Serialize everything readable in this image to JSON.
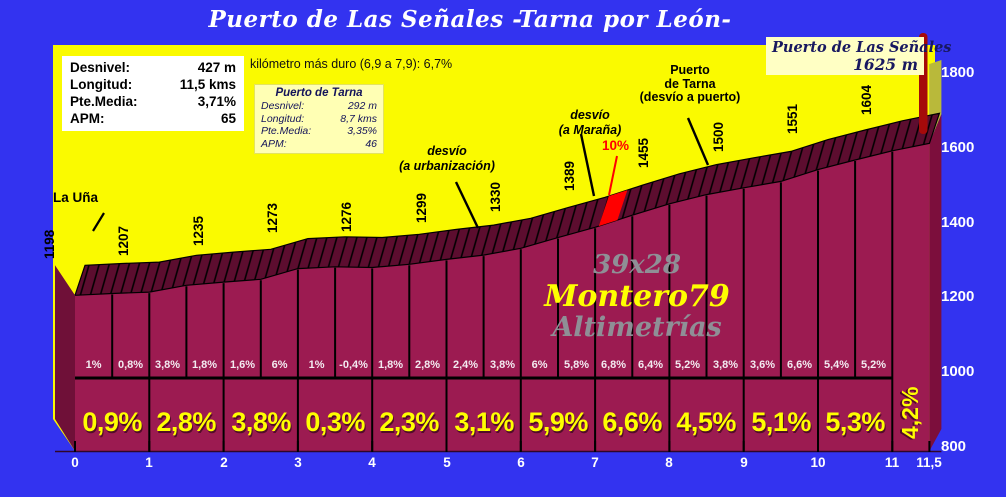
{
  "title": "Puerto de Las Señales -Tarna por León-",
  "stats_box": {
    "rows": [
      {
        "label": "Desnivel:",
        "value": "427 m"
      },
      {
        "label": "Longitud:",
        "value": "11,5 kms"
      },
      {
        "label": "Pte.Media:",
        "value": "3,71%"
      },
      {
        "label": "APM:",
        "value": "65"
      }
    ]
  },
  "hardest_km_note": "kilómetro más duro (6,9 a 7,9):   6,7%",
  "tarna_box": {
    "title": "Puerto de Tarna",
    "rows": [
      {
        "label": "Desnivel:",
        "value": "292 m"
      },
      {
        "label": "Longitud:",
        "value": "8,7 kms"
      },
      {
        "label": "Pte.Media:",
        "value": "3,35%"
      },
      {
        "label": "APM:",
        "value": "46"
      }
    ]
  },
  "summit_box": {
    "line1": "Puerto de Las Señales",
    "line2": "1625 m"
  },
  "annotations": {
    "start": "La Uña",
    "detour_urbanization": [
      "desvío",
      "(a urbanización)"
    ],
    "detour_marana": [
      "desvío",
      "(a Maraña)"
    ],
    "steepest_label": "10%",
    "tarna_pass": [
      "Puerto",
      "de Tarna",
      "(desvío a puerto)"
    ]
  },
  "watermark": [
    "39x28",
    "Montero79",
    "Altimetrías"
  ],
  "colors": {
    "background": "#3333f0",
    "sky": "#fafa00",
    "body": "#9c1b51",
    "band": "#5c0d2f",
    "cap_left": "#6f1038",
    "cap_right": "#7c0e3c",
    "sky_cap": "#b9b93a",
    "summit_post": "#a50a0a",
    "steep_red": "#ff0000",
    "km_label_yellow": "#ffff00",
    "axis_text": "#ffffff"
  },
  "chart_data": {
    "type": "area",
    "title": "Puerto de Las Señales -Tarna por León-",
    "x_unit": "km",
    "y_unit": "m",
    "x_range_km": [
      0,
      11.5
    ],
    "x_step_km": 0.5,
    "y_axis_ticks_m": [
      800,
      1000,
      1200,
      1400,
      1600,
      1800
    ],
    "x_axis_ticks": [
      {
        "km": 0,
        "label": "0"
      },
      {
        "km": 1,
        "label": "1"
      },
      {
        "km": 2,
        "label": "2"
      },
      {
        "km": 3,
        "label": "3"
      },
      {
        "km": 4,
        "label": "4"
      },
      {
        "km": 5,
        "label": "5"
      },
      {
        "km": 6,
        "label": "6"
      },
      {
        "km": 7,
        "label": "7"
      },
      {
        "km": 8,
        "label": "8"
      },
      {
        "km": 9,
        "label": "9"
      },
      {
        "km": 10,
        "label": "10"
      },
      {
        "km": 11,
        "label": "11"
      },
      {
        "km": 11.5,
        "label": "11,5"
      }
    ],
    "elevation_profile_m": [
      1198,
      1203,
      1207,
      1226,
      1235,
      1243,
      1273,
      1278,
      1276,
      1285,
      1299,
      1311,
      1330,
      1360,
      1389,
      1423,
      1455,
      1481,
      1500,
      1518,
      1551,
      1578,
      1604,
      1625
    ],
    "km_elevation_labels": [
      {
        "km": 0,
        "label": "1198"
      },
      {
        "km": 1,
        "label": "1207"
      },
      {
        "km": 2,
        "label": "1235"
      },
      {
        "km": 3,
        "label": "1273"
      },
      {
        "km": 4,
        "label": "1276"
      },
      {
        "km": 5,
        "label": "1299"
      },
      {
        "km": 6,
        "label": "1330"
      },
      {
        "km": 7,
        "label": "1389"
      },
      {
        "km": 8,
        "label": "1455"
      },
      {
        "km": 9,
        "label": "1500"
      },
      {
        "km": 10,
        "label": "1551"
      },
      {
        "km": 11,
        "label": "1604"
      }
    ],
    "summit": {
      "name": "Puerto de Las Señales",
      "elevation_m": 1625
    },
    "gradient_per_500m_pct": {
      "labels": [
        "1%",
        "0,8%",
        "3,8%",
        "1,8%",
        "1,6%",
        "6%",
        "1%",
        "-0,4%",
        "1,8%",
        "2,8%",
        "2,4%",
        "3,8%",
        "6%",
        "5,8%",
        "6,8%",
        "6,4%",
        "5,2%",
        "3,8%",
        "3,6%",
        "6,6%",
        "5,4%",
        "5,2%"
      ],
      "values": [
        1,
        0.8,
        3.8,
        1.8,
        1.6,
        6,
        1,
        -0.4,
        1.8,
        2.8,
        2.4,
        3.8,
        6,
        5.8,
        6.8,
        6.4,
        5.2,
        3.8,
        3.6,
        6.6,
        5.4,
        5.2
      ]
    },
    "gradient_per_km_pct": {
      "labels": [
        "0,9%",
        "2,8%",
        "3,8%",
        "0,3%",
        "2,3%",
        "3,1%",
        "5,9%",
        "6,6%",
        "4,5%",
        "5,1%",
        "5,3%"
      ],
      "values": [
        0.9,
        2.8,
        3.8,
        0.3,
        2.3,
        3.1,
        5.9,
        6.6,
        4.5,
        5.1,
        5.3
      ]
    },
    "final_half_km_gradient": {
      "label": "4,2%",
      "value": 4.2
    },
    "steep_mark": {
      "label": "10%",
      "from_km": 7.05,
      "to_km": 7.3
    }
  }
}
